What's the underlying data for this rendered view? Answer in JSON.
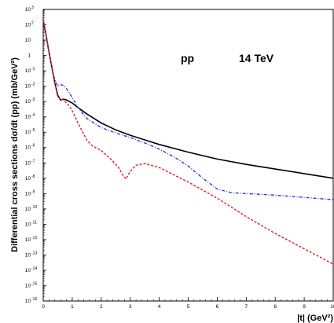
{
  "chart_data": {
    "type": "line",
    "title": "",
    "xlabel": "|t| (GeV²)",
    "ylabel": "Differential cross sections dσ/dt (pp) (mb/GeV²)",
    "xlim": [
      0,
      10
    ],
    "ylim_log10": [
      -16,
      3
    ],
    "y_scale": "log",
    "grid": false,
    "annotations": [
      {
        "text": "pp",
        "x": 3.6,
        "y_log10": 1.1
      },
      {
        "text": "14 TeV",
        "x": 5.6,
        "y_log10": 1.1
      }
    ],
    "x_ticks": [
      "0",
      "1",
      "2",
      "3",
      "4",
      "5",
      "6",
      "7",
      "8",
      "9",
      "10"
    ],
    "y_ticks": [
      {
        "label": "10",
        "exp": "3"
      },
      {
        "label": "10",
        "exp": "2"
      },
      {
        "label": "10",
        "exp": ""
      },
      {
        "label": "1",
        "exp": ""
      },
      {
        "label": "10",
        "exp": "-1"
      },
      {
        "label": "10",
        "exp": "-2"
      },
      {
        "label": "10",
        "exp": "-3"
      },
      {
        "label": "10",
        "exp": "-4"
      },
      {
        "label": "10",
        "exp": "-5"
      },
      {
        "label": "10",
        "exp": "-6"
      },
      {
        "label": "10",
        "exp": "-7"
      },
      {
        "label": "10",
        "exp": "-8"
      },
      {
        "label": "10",
        "exp": "-9"
      },
      {
        "label": "10",
        "exp": "-10"
      },
      {
        "label": "10",
        "exp": "-11"
      },
      {
        "label": "10",
        "exp": "-12"
      },
      {
        "label": "10",
        "exp": "-13"
      },
      {
        "label": "10",
        "exp": "-14"
      },
      {
        "label": "10",
        "exp": "-15"
      },
      {
        "label": "10",
        "exp": "-16"
      }
    ],
    "series": [
      {
        "color": "#000000",
        "style": "solid",
        "x": [
          0,
          0.1,
          0.2,
          0.3,
          0.4,
          0.5,
          0.6,
          0.7,
          0.8,
          0.9,
          1.0,
          1.2,
          1.5,
          2.0,
          2.5,
          3.0,
          3.5,
          4.0,
          5.0,
          6.0,
          7.0,
          8.0,
          9.0,
          10.0
        ],
        "y_log10": [
          2.3,
          1.3,
          0.2,
          -0.8,
          -1.8,
          -2.6,
          -2.9,
          -2.85,
          -2.9,
          -3.0,
          -3.1,
          -3.4,
          -3.8,
          -4.4,
          -4.85,
          -5.2,
          -5.5,
          -5.8,
          -6.3,
          -6.75,
          -7.1,
          -7.4,
          -7.7,
          -8.0
        ]
      },
      {
        "color": "#1f3ed8",
        "style": "dash-dot",
        "x": [
          0,
          0.1,
          0.2,
          0.3,
          0.4,
          0.5,
          0.6,
          0.7,
          0.8,
          0.9,
          1.0,
          1.2,
          1.5,
          2.0,
          2.5,
          3.0,
          3.5,
          4.0,
          4.5,
          5.0,
          5.5,
          6.0,
          6.5,
          7.0,
          8.0,
          9.0,
          10.0
        ],
        "y_log10": [
          2.3,
          1.3,
          0.2,
          -0.8,
          -1.6,
          -2.0,
          -1.9,
          -1.95,
          -2.15,
          -2.45,
          -2.75,
          -3.4,
          -4.1,
          -4.7,
          -5.05,
          -5.35,
          -5.7,
          -6.1,
          -6.6,
          -7.2,
          -8.0,
          -8.7,
          -8.95,
          -9.0,
          -9.1,
          -9.25,
          -9.4
        ]
      },
      {
        "color": "#e02020",
        "style": "dashed",
        "x": [
          0,
          0.1,
          0.2,
          0.3,
          0.4,
          0.5,
          0.6,
          0.7,
          0.8,
          0.9,
          1.0,
          1.2,
          1.5,
          1.7,
          2.0,
          2.3,
          2.6,
          2.75,
          2.85,
          3.0,
          3.2,
          3.5,
          4.0,
          5.0,
          6.0,
          7.0,
          8.0,
          9.0,
          10.0
        ],
        "y_log10": [
          2.3,
          1.3,
          0.2,
          -0.8,
          -1.8,
          -2.7,
          -2.85,
          -2.9,
          -3.1,
          -3.3,
          -3.6,
          -4.4,
          -5.5,
          -5.9,
          -6.2,
          -6.7,
          -7.3,
          -7.8,
          -8.05,
          -7.55,
          -7.15,
          -7.05,
          -7.3,
          -8.25,
          -9.3,
          -10.5,
          -11.6,
          -12.6,
          -13.6
        ]
      }
    ]
  }
}
